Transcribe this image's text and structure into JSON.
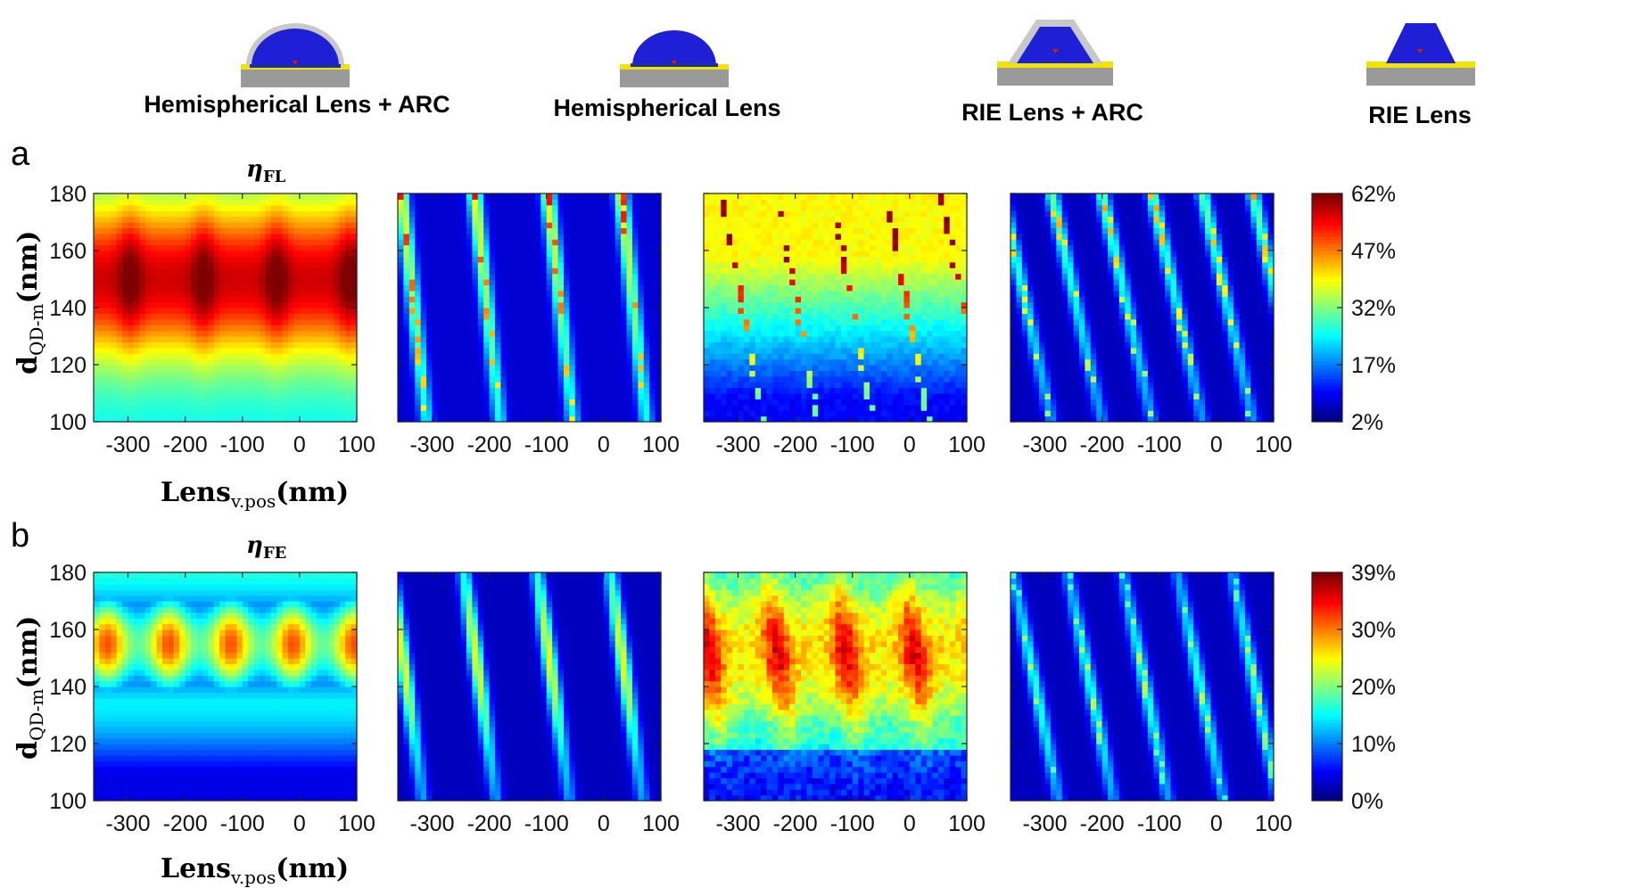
{
  "columns": [
    {
      "title": "Hemispherical Lens + ARC",
      "icon": "hemispherical-lens-arc-icon",
      "shape": "dome",
      "arc": true,
      "layer_color": "#1a2fa0"
    },
    {
      "title": "Hemispherical Lens",
      "icon": "hemispherical-lens-icon",
      "shape": "dome",
      "arc": false,
      "layer_color": "#1a2fa0"
    },
    {
      "title": "RIE Lens + ARC",
      "icon": "rie-lens-arc-icon",
      "shape": "trapezoid",
      "arc": true,
      "layer_color": "#f2e400"
    },
    {
      "title": "RIE Lens",
      "icon": "rie-lens-icon",
      "shape": "trapezoid",
      "arc": false,
      "layer_color": "#f2e400"
    }
  ],
  "colors": {
    "lens": "#1f1fd6",
    "arc": "#c8c8c8",
    "substrate": "#9a9a9a",
    "layer": "#f2e400",
    "qd": "#cc2200"
  },
  "rows": [
    {
      "letter": "a",
      "eta_symbol": "η",
      "eta_sub": "FL",
      "colorbar_ticks": [
        "62%",
        "47%",
        "32%",
        "17%",
        "2%"
      ]
    },
    {
      "letter": "b",
      "eta_symbol": "η",
      "eta_sub": "FE",
      "colorbar_ticks": [
        "39%",
        "30%",
        "20%",
        "10%",
        "0%"
      ]
    }
  ],
  "axis_labels": {
    "y_main": "d",
    "y_sub": "QD-m",
    "y_unit": "(nm)",
    "x_main": "Lens",
    "x_sub": "v.pos",
    "x_unit": "(nm)"
  },
  "chart_data": [
    {
      "type": "heatmap",
      "row": "a",
      "title": "ηFL",
      "column": "Hemispherical Lens + ARC",
      "xlabel": "Lensv.pos(nm)",
      "ylabel": "dQD-m(nm)",
      "x_ticks": [
        -300,
        -200,
        -100,
        0,
        100
      ],
      "y_ticks": [
        100,
        120,
        140,
        160,
        180
      ],
      "xlim": [
        -360,
        100
      ],
      "ylim": [
        100,
        180
      ],
      "colorbar_range": [
        2,
        62
      ],
      "colorbar_unit": "%",
      "pattern": "hemi_arc_fl"
    },
    {
      "type": "heatmap",
      "row": "a",
      "column": "Hemispherical Lens",
      "x_ticks": [
        -300,
        -200,
        -100,
        0,
        100
      ],
      "y_ticks": [
        100,
        120,
        140,
        160,
        180
      ],
      "xlim": [
        -360,
        100
      ],
      "ylim": [
        100,
        180
      ],
      "colorbar_range": [
        2,
        62
      ],
      "colorbar_unit": "%",
      "pattern": "hemi_fl"
    },
    {
      "type": "heatmap",
      "row": "a",
      "column": "RIE Lens + ARC",
      "x_ticks": [
        -300,
        -200,
        -100,
        0,
        100
      ],
      "y_ticks": [
        100,
        120,
        140,
        160,
        180
      ],
      "xlim": [
        -360,
        100
      ],
      "ylim": [
        100,
        180
      ],
      "colorbar_range": [
        2,
        62
      ],
      "colorbar_unit": "%",
      "pattern": "rie_arc_fl"
    },
    {
      "type": "heatmap",
      "row": "a",
      "column": "RIE Lens",
      "x_ticks": [
        -300,
        -200,
        -100,
        0,
        100
      ],
      "y_ticks": [
        100,
        120,
        140,
        160,
        180
      ],
      "xlim": [
        -360,
        100
      ],
      "ylim": [
        100,
        180
      ],
      "colorbar_range": [
        2,
        62
      ],
      "colorbar_unit": "%",
      "pattern": "rie_fl"
    },
    {
      "type": "heatmap",
      "row": "b",
      "title": "ηFE",
      "column": "Hemispherical Lens + ARC",
      "xlabel": "Lensv.pos(nm)",
      "ylabel": "dQD-m(nm)",
      "x_ticks": [
        -300,
        -200,
        -100,
        0,
        100
      ],
      "y_ticks": [
        100,
        120,
        140,
        160,
        180
      ],
      "xlim": [
        -360,
        100
      ],
      "ylim": [
        100,
        180
      ],
      "colorbar_range": [
        0,
        39
      ],
      "colorbar_unit": "%",
      "pattern": "hemi_arc_fe"
    },
    {
      "type": "heatmap",
      "row": "b",
      "column": "Hemispherical Lens",
      "x_ticks": [
        -300,
        -200,
        -100,
        0,
        100
      ],
      "y_ticks": [
        100,
        120,
        140,
        160,
        180
      ],
      "xlim": [
        -360,
        100
      ],
      "ylim": [
        100,
        180
      ],
      "colorbar_range": [
        0,
        39
      ],
      "colorbar_unit": "%",
      "pattern": "hemi_fe"
    },
    {
      "type": "heatmap",
      "row": "b",
      "column": "RIE Lens + ARC",
      "x_ticks": [
        -300,
        -200,
        -100,
        0,
        100
      ],
      "y_ticks": [
        100,
        120,
        140,
        160,
        180
      ],
      "xlim": [
        -360,
        100
      ],
      "ylim": [
        100,
        180
      ],
      "colorbar_range": [
        0,
        39
      ],
      "colorbar_unit": "%",
      "pattern": "rie_arc_fe"
    },
    {
      "type": "heatmap",
      "row": "b",
      "column": "RIE Lens",
      "x_ticks": [
        -300,
        -200,
        -100,
        0,
        100
      ],
      "y_ticks": [
        100,
        120,
        140,
        160,
        180
      ],
      "xlim": [
        -360,
        100
      ],
      "ylim": [
        100,
        180
      ],
      "colorbar_range": [
        0,
        39
      ],
      "colorbar_unit": "%",
      "pattern": "rie_fe"
    }
  ]
}
